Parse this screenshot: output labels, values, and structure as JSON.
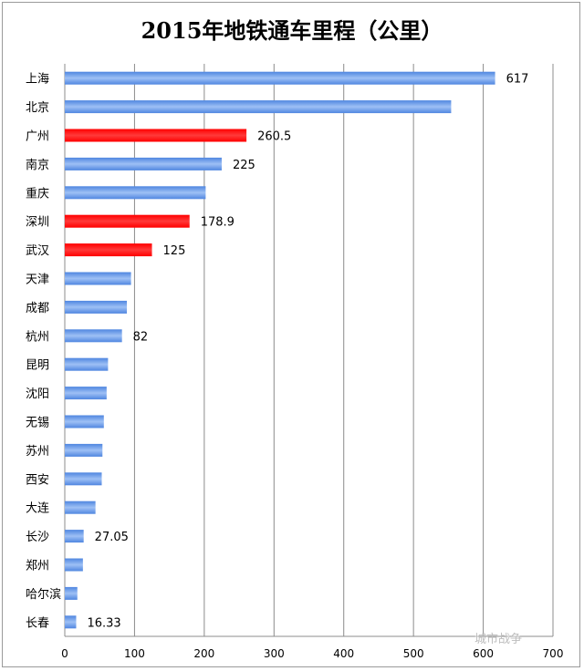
{
  "chart_data": {
    "type": "bar",
    "orientation": "horizontal",
    "title": "2015年地铁通车里程（公里）",
    "categories": [
      "上海",
      "北京",
      "广州",
      "南京",
      "重庆",
      "深圳",
      "武汉",
      "天津",
      "成都",
      "杭州",
      "昆明",
      "沈阳",
      "无锡",
      "苏州",
      "西安",
      "大连",
      "长沙",
      "郑州",
      "哈尔滨",
      "长春"
    ],
    "values": [
      617,
      554,
      260.5,
      225,
      202,
      178.9,
      125,
      95,
      89,
      82,
      62,
      60,
      56,
      54,
      53,
      44,
      27.05,
      26,
      18,
      16.33
    ],
    "data_labels": [
      "617",
      "",
      "260.5",
      "225",
      "",
      "178.9",
      "125",
      "",
      "",
      "82",
      "",
      "",
      "",
      "",
      "",
      "",
      "27.05",
      "",
      "",
      "16.33"
    ],
    "highlight": [
      false,
      false,
      true,
      false,
      false,
      true,
      true,
      false,
      false,
      false,
      false,
      false,
      false,
      false,
      false,
      false,
      false,
      false,
      false,
      false
    ],
    "colors": {
      "default": "#6a9be8",
      "highlight": "#ff0000"
    },
    "xlim": [
      0,
      700
    ],
    "x_ticks": [
      0,
      100,
      200,
      300,
      400,
      500,
      600,
      700
    ],
    "grid": true
  },
  "watermark": "城市战争"
}
